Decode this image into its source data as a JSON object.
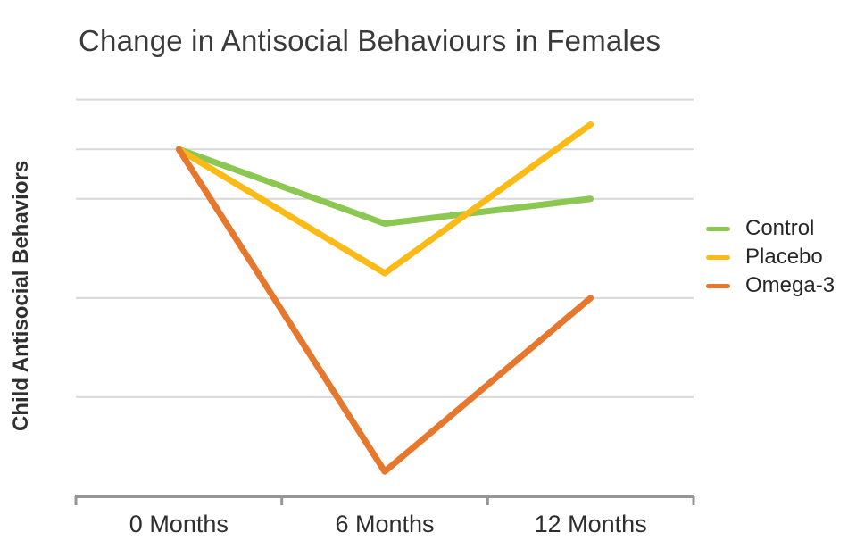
{
  "title": "Change in Antisocial Behaviours in Females",
  "y_axis_label": "Child Antisocial Behaviors",
  "legend": {
    "position": "right",
    "items": [
      {
        "label": "Control",
        "color": "#8cc751"
      },
      {
        "label": "Placebo",
        "color": "#fbba16"
      },
      {
        "label": "Omega-3",
        "color": "#e5782d"
      }
    ]
  },
  "chart_data": {
    "type": "line",
    "title": "Change in Antisocial Behaviours in Females",
    "xlabel": "",
    "ylabel": "Child Antisocial Behaviors",
    "categories": [
      "0 Months",
      "6 Months",
      "12 Months"
    ],
    "series": [
      {
        "name": "Control",
        "color": "#8cc751",
        "values": [
          7,
          5.5,
          6
        ]
      },
      {
        "name": "Placebo",
        "color": "#fbba16",
        "values": [
          7,
          4.5,
          7.5
        ]
      },
      {
        "name": "Omega-3",
        "color": "#e5782d",
        "values": [
          7,
          0.5,
          4
        ]
      }
    ],
    "ylim": [
      0,
      8.3
    ],
    "y_tick_labels_shown": false,
    "grid": true,
    "gridline_values": [
      2,
      4,
      6,
      7,
      8
    ],
    "legend_position": "right",
    "colors": {
      "gridline": "#d8d8d8",
      "axis": "#969696",
      "title_text": "#3a3a3a",
      "tick_label_text": "#2e2e2e",
      "legend_text": "#262626"
    }
  }
}
